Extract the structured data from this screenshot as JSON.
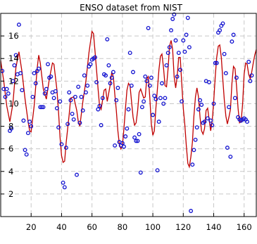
{
  "chart_data": {
    "type": "scatter",
    "title": "ENSO dataset from NIST",
    "xlabel": "",
    "ylabel": "",
    "xlim": [
      0,
      168
    ],
    "ylim": [
      0,
      18
    ],
    "xticks": [
      20,
      40,
      60,
      80,
      100,
      120,
      140,
      160
    ],
    "yticks": [
      2,
      4,
      6,
      8,
      10,
      12,
      14,
      16
    ],
    "grid": true,
    "colors": {
      "points": "#1010d0",
      "fit_line": "#c00000",
      "grid": "#c8c8c8"
    },
    "series": [
      {
        "kind": "points",
        "points": [
          [
            1,
            12.9
          ],
          [
            2,
            11.3
          ],
          [
            3,
            10.6
          ],
          [
            4,
            11.3
          ],
          [
            5,
            10.9
          ],
          [
            6,
            7.6
          ],
          [
            7,
            7.8
          ],
          [
            8,
            12.0
          ],
          [
            9,
            13.4
          ],
          [
            10,
            14.3
          ],
          [
            11,
            12.6
          ],
          [
            12,
            17.0
          ],
          [
            13,
            12.7
          ],
          [
            14,
            11.2
          ],
          [
            15,
            8.5
          ],
          [
            16,
            5.9
          ],
          [
            17,
            5.5
          ],
          [
            18,
            7.4
          ],
          [
            19,
            8.4
          ],
          [
            20,
            8.0
          ],
          [
            21,
            10.6
          ],
          [
            22,
            12.7
          ],
          [
            23,
            11.8
          ],
          [
            24,
            12.9
          ],
          [
            25,
            13.1
          ],
          [
            26,
            9.7
          ],
          [
            27,
            9.7
          ],
          [
            28,
            9.7
          ],
          [
            29,
            10.9
          ],
          [
            30,
            11.3
          ],
          [
            31,
            13.5
          ],
          [
            32,
            12.3
          ],
          [
            33,
            12.4
          ],
          [
            34,
            11.0
          ],
          [
            35,
            10.5
          ],
          [
            36,
            11.1
          ],
          [
            37,
            9.6
          ],
          [
            38,
            7.9
          ],
          [
            39,
            10.2
          ],
          [
            40,
            6.4
          ],
          [
            41,
            3.0
          ],
          [
            42,
            2.6
          ],
          [
            43,
            6.1
          ],
          [
            44,
            8.2
          ],
          [
            45,
            11.0
          ],
          [
            46,
            10.3
          ],
          [
            47,
            9.1
          ],
          [
            48,
            8.6
          ],
          [
            49,
            10.6
          ],
          [
            50,
            3.7
          ],
          [
            51,
            11.5
          ],
          [
            52,
            8.3
          ],
          [
            53,
            10.6
          ],
          [
            54,
            9.4
          ],
          [
            55,
            12.5
          ],
          [
            56,
            11.0
          ],
          [
            57,
            11.6
          ],
          [
            58,
            13.3
          ],
          [
            59,
            13.5
          ],
          [
            60,
            13.9
          ],
          [
            61,
            14.0
          ],
          [
            62,
            14.1
          ],
          [
            63,
            11.9
          ],
          [
            64,
            9.5
          ],
          [
            65,
            9.8
          ],
          [
            66,
            8.1
          ],
          [
            67,
            10.5
          ],
          [
            68,
            12.6
          ],
          [
            69,
            12.5
          ],
          [
            70,
            15.7
          ],
          [
            71,
            13.4
          ],
          [
            72,
            11.8
          ],
          [
            73,
            12.3
          ],
          [
            74,
            12.8
          ],
          [
            75,
            6.3
          ],
          [
            76,
            10.3
          ],
          [
            77,
            11.4
          ],
          [
            78,
            6.6
          ],
          [
            79,
            6.3
          ],
          [
            80,
            6.5
          ],
          [
            81,
            6.2
          ],
          [
            82,
            7.1
          ],
          [
            83,
            7.8
          ],
          [
            84,
            9.5
          ],
          [
            85,
            14.5
          ],
          [
            86,
            11.6
          ],
          [
            87,
            12.8
          ],
          [
            88,
            7.0
          ],
          [
            89,
            6.7
          ],
          [
            90,
            6.7
          ],
          [
            91,
            7.3
          ],
          [
            92,
            3.9
          ],
          [
            93,
            9.7
          ],
          [
            94,
            10.2
          ],
          [
            95,
            12.4
          ],
          [
            96,
            12.0
          ],
          [
            97,
            16.7
          ],
          [
            98,
            11.6
          ],
          [
            99,
            12.3
          ],
          [
            100,
            9.0
          ],
          [
            101,
            10.7
          ],
          [
            102,
            10.4
          ],
          [
            103,
            4.1
          ],
          [
            104,
            8.4
          ],
          [
            105,
            10.5
          ],
          [
            106,
            11.8
          ],
          [
            107,
            10.0
          ],
          [
            108,
            10.5
          ],
          [
            109,
            13.4
          ],
          [
            110,
            14.5
          ],
          [
            111,
            15.0
          ],
          [
            112,
            16.5
          ],
          [
            113,
            17.5
          ],
          [
            114,
            17.9
          ],
          [
            115,
            15.6
          ],
          [
            116,
            12.4
          ],
          [
            117,
            14.5
          ],
          [
            118,
            13.0
          ],
          [
            119,
            10.2
          ],
          [
            120,
            15.6
          ],
          [
            121,
            14.6
          ],
          [
            122,
            16.1
          ],
          [
            123,
            17.6
          ],
          [
            124,
            15.0
          ],
          [
            125,
            0.5
          ],
          [
            126,
            4.6
          ],
          [
            127,
            5.9
          ],
          [
            128,
            6.8
          ],
          [
            129,
            7.9
          ],
          [
            130,
            9.5
          ],
          [
            131,
            10.3
          ],
          [
            132,
            9.9
          ],
          [
            133,
            8.3
          ],
          [
            134,
            8.4
          ],
          [
            135,
            12.0
          ],
          [
            136,
            8.7
          ],
          [
            137,
            11.9
          ],
          [
            138,
            8.5
          ],
          [
            139,
            8.1
          ],
          [
            140,
            10.0
          ],
          [
            141,
            13.6
          ],
          [
            142,
            13.6
          ],
          [
            143,
            16.3
          ],
          [
            144,
            16.5
          ],
          [
            145,
            16.9
          ],
          [
            146,
            17.1
          ],
          [
            147,
            14.4
          ],
          [
            148,
            12.7
          ],
          [
            149,
            6.1
          ],
          [
            150,
            9.7
          ],
          [
            151,
            5.3
          ],
          [
            152,
            15.5
          ],
          [
            153,
            16.1
          ],
          [
            154,
            10.5
          ],
          [
            155,
            12.3
          ],
          [
            156,
            8.8
          ],
          [
            157,
            8.6
          ],
          [
            158,
            8.5
          ],
          [
            159,
            8.6
          ],
          [
            160,
            8.7
          ],
          [
            161,
            8.6
          ],
          [
            162,
            8.4
          ],
          [
            163,
            13.7
          ],
          [
            164,
            12.0
          ],
          [
            165,
            12.5
          ]
        ]
      },
      {
        "kind": "line",
        "points": [
          [
            0,
            13.8
          ],
          [
            2,
            12.0
          ],
          [
            4,
            9.8
          ],
          [
            6,
            8.4
          ],
          [
            8,
            10.0
          ],
          [
            10,
            13.2
          ],
          [
            12,
            14.6
          ],
          [
            14,
            12.8
          ],
          [
            16,
            10.4
          ],
          [
            18,
            8.4
          ],
          [
            19,
            7.6
          ],
          [
            20,
            7.5
          ],
          [
            22,
            9.8
          ],
          [
            24,
            13.2
          ],
          [
            25,
            14.3
          ],
          [
            26,
            13.6
          ],
          [
            28,
            11.3
          ],
          [
            30,
            10.4
          ],
          [
            32,
            12.2
          ],
          [
            34,
            13.6
          ],
          [
            35,
            13.5
          ],
          [
            37,
            11.2
          ],
          [
            38,
            9.3
          ],
          [
            39,
            7.0
          ],
          [
            40,
            5.4
          ],
          [
            41,
            4.8
          ],
          [
            42,
            4.9
          ],
          [
            43,
            6.5
          ],
          [
            45,
            9.0
          ],
          [
            46,
            10.5
          ],
          [
            48,
            10.6
          ],
          [
            50,
            9.4
          ],
          [
            51,
            8.4
          ],
          [
            52,
            8.0
          ],
          [
            54,
            10.2
          ],
          [
            56,
            12.0
          ],
          [
            58,
            14.5
          ],
          [
            60,
            16.4
          ],
          [
            61,
            16.2
          ],
          [
            62,
            14.6
          ],
          [
            64,
            11.3
          ],
          [
            65,
            9.8
          ],
          [
            66,
            9.5
          ],
          [
            68,
            11.2
          ],
          [
            69,
            11.3
          ],
          [
            70,
            10.2
          ],
          [
            72,
            11.7
          ],
          [
            73,
            12.8
          ],
          [
            74,
            12.4
          ],
          [
            75,
            10.8
          ],
          [
            76,
            9.4
          ],
          [
            77,
            7.6
          ],
          [
            78,
            6.4
          ],
          [
            79,
            6.0
          ],
          [
            80,
            6.3
          ],
          [
            81,
            7.8
          ],
          [
            82,
            9.6
          ],
          [
            83,
            11.2
          ],
          [
            84,
            11.8
          ],
          [
            85,
            11.6
          ],
          [
            86,
            10.2
          ],
          [
            87,
            8.8
          ],
          [
            88,
            8.1
          ],
          [
            89,
            8.3
          ],
          [
            90,
            9.4
          ],
          [
            91,
            11.0
          ],
          [
            92,
            11.3
          ],
          [
            94,
            10.5
          ],
          [
            95,
            10.6
          ],
          [
            96,
            12.2
          ],
          [
            97,
            12.4
          ],
          [
            98,
            10.5
          ],
          [
            99,
            8.2
          ],
          [
            100,
            7.2
          ],
          [
            101,
            7.6
          ],
          [
            102,
            9.6
          ],
          [
            104,
            13.0
          ],
          [
            105,
            14.2
          ],
          [
            106,
            14.4
          ],
          [
            107,
            13.2
          ],
          [
            108,
            11.6
          ],
          [
            109,
            11.5
          ],
          [
            110,
            13.1
          ],
          [
            111,
            15.1
          ],
          [
            112,
            15.6
          ],
          [
            113,
            14.8
          ],
          [
            114,
            12.4
          ],
          [
            115,
            11.4
          ],
          [
            116,
            12.4
          ],
          [
            117,
            14.1
          ],
          [
            118,
            14.1
          ],
          [
            119,
            11.8
          ],
          [
            120,
            9.6
          ],
          [
            121,
            8.2
          ],
          [
            122,
            6.3
          ],
          [
            123,
            4.7
          ],
          [
            124,
            4.4
          ],
          [
            125,
            5.3
          ],
          [
            126,
            6.6
          ],
          [
            127,
            8.9
          ],
          [
            128,
            10.6
          ],
          [
            129,
            11.4
          ],
          [
            130,
            10.6
          ],
          [
            131,
            8.8
          ],
          [
            132,
            7.6
          ],
          [
            133,
            7.3
          ],
          [
            134,
            7.8
          ],
          [
            135,
            9.4
          ],
          [
            136,
            9.6
          ],
          [
            137,
            8.6
          ],
          [
            138,
            7.6
          ],
          [
            139,
            8.4
          ],
          [
            140,
            10.2
          ],
          [
            141,
            12.4
          ],
          [
            142,
            14.1
          ],
          [
            143,
            15.1
          ],
          [
            144,
            15.2
          ],
          [
            145,
            14.1
          ],
          [
            146,
            12.1
          ],
          [
            147,
            10.3
          ],
          [
            148,
            8.9
          ],
          [
            149,
            8.2
          ],
          [
            150,
            8.8
          ],
          [
            151,
            9.5
          ],
          [
            152,
            11.8
          ],
          [
            153,
            13.3
          ],
          [
            154,
            13.1
          ],
          [
            155,
            11.6
          ],
          [
            156,
            9.6
          ],
          [
            157,
            8.3
          ],
          [
            158,
            8.4
          ],
          [
            159,
            10.0
          ],
          [
            160,
            12.6
          ],
          [
            161,
            13.6
          ],
          [
            162,
            13.5
          ],
          [
            163,
            12.6
          ],
          [
            164,
            12.2
          ],
          [
            165,
            12.8
          ],
          [
            166,
            13.6
          ],
          [
            167,
            14.3
          ],
          [
            168,
            14.8
          ]
        ]
      }
    ]
  }
}
